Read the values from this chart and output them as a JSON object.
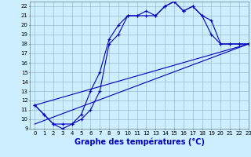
{
  "background_color": "#cceeff",
  "grid_color": "#99bbcc",
  "line_color": "#0000bb",
  "xlabel": "Graphe des températures (°C)",
  "xlabel_fontsize": 7,
  "ylim": [
    9,
    22.5
  ],
  "xlim": [
    -0.5,
    23
  ],
  "yticks": [
    9,
    10,
    11,
    12,
    13,
    14,
    15,
    16,
    17,
    18,
    19,
    20,
    21,
    22
  ],
  "xticks": [
    0,
    1,
    2,
    3,
    4,
    5,
    6,
    7,
    8,
    9,
    10,
    11,
    12,
    13,
    14,
    15,
    16,
    17,
    18,
    19,
    20,
    21,
    22,
    23
  ],
  "line1_x": [
    0,
    1,
    2,
    3,
    4,
    5,
    6,
    7,
    8,
    9,
    10,
    11,
    12,
    13,
    14,
    15,
    16,
    17,
    18,
    19,
    20,
    21,
    22,
    23
  ],
  "line1_y": [
    11.5,
    10.5,
    9.5,
    9.0,
    9.5,
    10.5,
    13.0,
    15.0,
    18.5,
    20.0,
    21.0,
    21.0,
    21.0,
    21.0,
    22.0,
    22.5,
    21.5,
    22.0,
    21.0,
    20.5,
    18.0,
    18.0,
    18.0,
    18.0
  ],
  "line2_x": [
    0,
    1,
    2,
    3,
    4,
    5,
    6,
    7,
    8,
    9,
    10,
    11,
    12,
    13,
    14,
    15,
    16,
    17,
    18,
    19,
    20,
    21,
    22,
    23
  ],
  "line2_y": [
    11.5,
    10.5,
    9.5,
    9.5,
    9.5,
    10.0,
    11.0,
    13.0,
    18.0,
    19.0,
    21.0,
    21.0,
    21.5,
    21.0,
    22.0,
    22.5,
    21.5,
    22.0,
    21.0,
    19.0,
    18.0,
    18.0,
    18.0,
    18.0
  ],
  "line3_x": [
    0,
    23
  ],
  "line3_y": [
    9.5,
    18.0
  ],
  "line4_x": [
    0,
    23
  ],
  "line4_y": [
    11.5,
    18.0
  ]
}
